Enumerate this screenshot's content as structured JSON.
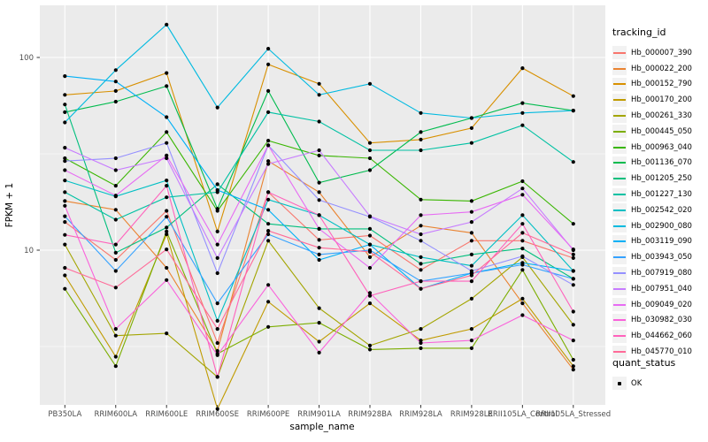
{
  "axes": {
    "xlabel": "sample_name",
    "ylabel": "FPKM + 1",
    "y_tick_labels": [
      "100",
      "10"
    ]
  },
  "legend": {
    "color_title": "tracking_id",
    "shape_title": "quant_status",
    "shape_item_label": "OK"
  },
  "colors": {
    "panel_bg": "#EBEBEB",
    "grid": "#FFFFFF",
    "tick_text": "#4D4D4D",
    "tick_mark": "#333333",
    "point": "#000000",
    "legend_key_bg": "#F2F2F2"
  },
  "chart_data": {
    "type": "line",
    "title": "",
    "xlabel": "sample_name",
    "ylabel": "FPKM + 1",
    "yscale": "log10",
    "ylim": [
      1.45,
      170
    ],
    "y_major_ticks": [
      10,
      100
    ],
    "y_minor_ticks": [
      3.1623,
      31.623
    ],
    "grid": true,
    "legend_position": "right",
    "categories": [
      "PB350LA",
      "RRIM600LA",
      "RRIM600LE",
      "RRIM600SE",
      "RRIM600PE",
      "RRIM901LA",
      "RRIM928BA",
      "RRIM928LA",
      "RRIM928LE",
      "RRII105LA_Control",
      "RRII105LA_Stressed"
    ],
    "series": [
      {
        "name": "Hb_000007_390",
        "color": "#F8766D",
        "values": [
          14,
          8.9,
          16,
          3.3,
          20,
          11.3,
          11.9,
          7.9,
          11.2,
          11.2,
          9.1
        ]
      },
      {
        "name": "Hb_000022_200",
        "color": "#EA8331",
        "values": [
          18,
          16.2,
          8.1,
          3.0,
          29,
          20,
          9.2,
          13.4,
          12.3,
          5.3,
          2.4
        ]
      },
      {
        "name": "Hb_000152_790",
        "color": "#D89000",
        "values": [
          64,
          67,
          83,
          12.5,
          92,
          73,
          36,
          37.5,
          43,
          88,
          63
        ]
      },
      {
        "name": "Hb_000170_200",
        "color": "#C09B00",
        "values": [
          7.4,
          2.8,
          12.1,
          1.5,
          5.4,
          3.35,
          5.3,
          3.4,
          3.9,
          5.6,
          2.5
        ]
      },
      {
        "name": "Hb_000261_330",
        "color": "#A3A500",
        "values": [
          10.7,
          3.6,
          3.7,
          2.2,
          11.2,
          5.0,
          3.2,
          3.9,
          5.6,
          9.2,
          4.1
        ]
      },
      {
        "name": "Hb_000445_050",
        "color": "#7CAE00",
        "values": [
          6.3,
          2.5,
          12.5,
          2.9,
          4.0,
          4.2,
          3.05,
          3.1,
          3.1,
          7.9,
          2.7
        ]
      },
      {
        "name": "Hb_000963_040",
        "color": "#39B600",
        "values": [
          30,
          21.6,
          41,
          16.0,
          37,
          31,
          30,
          18.3,
          18,
          22.8,
          13.7
        ]
      },
      {
        "name": "Hb_001136_070",
        "color": "#00BB4E",
        "values": [
          52,
          59,
          71,
          16.4,
          67,
          22.4,
          26,
          41,
          48.5,
          58,
          53
        ]
      },
      {
        "name": "Hb_001205_250",
        "color": "#00BF7D",
        "values": [
          57,
          9.7,
          13.1,
          22,
          13.7,
          12.9,
          12.9,
          8.5,
          9.5,
          10.2,
          7.1
        ]
      },
      {
        "name": "Hb_001227_130",
        "color": "#00C1A3",
        "values": [
          20,
          14.4,
          18.8,
          20,
          52,
          46.5,
          33,
          33,
          36,
          44.5,
          28.7
        ]
      },
      {
        "name": "Hb_002542_020",
        "color": "#00BFC4",
        "values": [
          23,
          19,
          23,
          4.3,
          18.3,
          15.2,
          10.7,
          9.2,
          8.3,
          15.2,
          7.8
        ]
      },
      {
        "name": "Hb_002900_080",
        "color": "#00BAE0",
        "values": [
          46,
          86,
          148,
          55,
          111,
          64,
          73,
          51.5,
          48.5,
          51.5,
          53
        ]
      },
      {
        "name": "Hb_003119_090",
        "color": "#00B0F6",
        "values": [
          80,
          75,
          49,
          20.5,
          16.2,
          8.9,
          10.7,
          6.3,
          7.6,
          8.6,
          7.8
        ]
      },
      {
        "name": "Hb_003943_050",
        "color": "#35A2FF",
        "values": [
          15,
          7.8,
          14.9,
          5.3,
          12.1,
          9.5,
          10.0,
          6.9,
          7.6,
          8.4,
          7.1
        ]
      },
      {
        "name": "Hb_007919_080",
        "color": "#9590FF",
        "values": [
          29,
          30,
          36,
          7.6,
          35,
          18.2,
          14.9,
          11.2,
          7.8,
          9.3,
          6.6
        ]
      },
      {
        "name": "Hb_007951_040",
        "color": "#C77CFF",
        "values": [
          34,
          26,
          30,
          9.1,
          28,
          33,
          15.0,
          12.1,
          14,
          20.9,
          10.0
        ]
      },
      {
        "name": "Hb_009049_020",
        "color": "#E76BF3",
        "values": [
          26,
          19.2,
          31,
          10.7,
          35,
          12.9,
          8.1,
          15.2,
          15.8,
          19.4,
          10.1
        ]
      },
      {
        "name": "Hb_030982_030",
        "color": "#FA62DB",
        "values": [
          17,
          3.9,
          7.0,
          2.85,
          6.6,
          2.94,
          6.0,
          3.3,
          3.4,
          4.6,
          3.4
        ]
      },
      {
        "name": "Hb_044662_060",
        "color": "#FF62BC",
        "values": [
          12,
          10.7,
          21.6,
          2.2,
          20,
          15.2,
          5.8,
          6.9,
          6.9,
          13.7,
          4.8
        ]
      },
      {
        "name": "Hb_045770_010",
        "color": "#FF6A98",
        "values": [
          8.1,
          6.4,
          10.1,
          3.9,
          12.6,
          10.3,
          9.8,
          6.3,
          7.4,
          12.3,
          9.5
        ]
      }
    ],
    "point_legend": {
      "title": "quant_status",
      "items": [
        "OK"
      ]
    }
  }
}
